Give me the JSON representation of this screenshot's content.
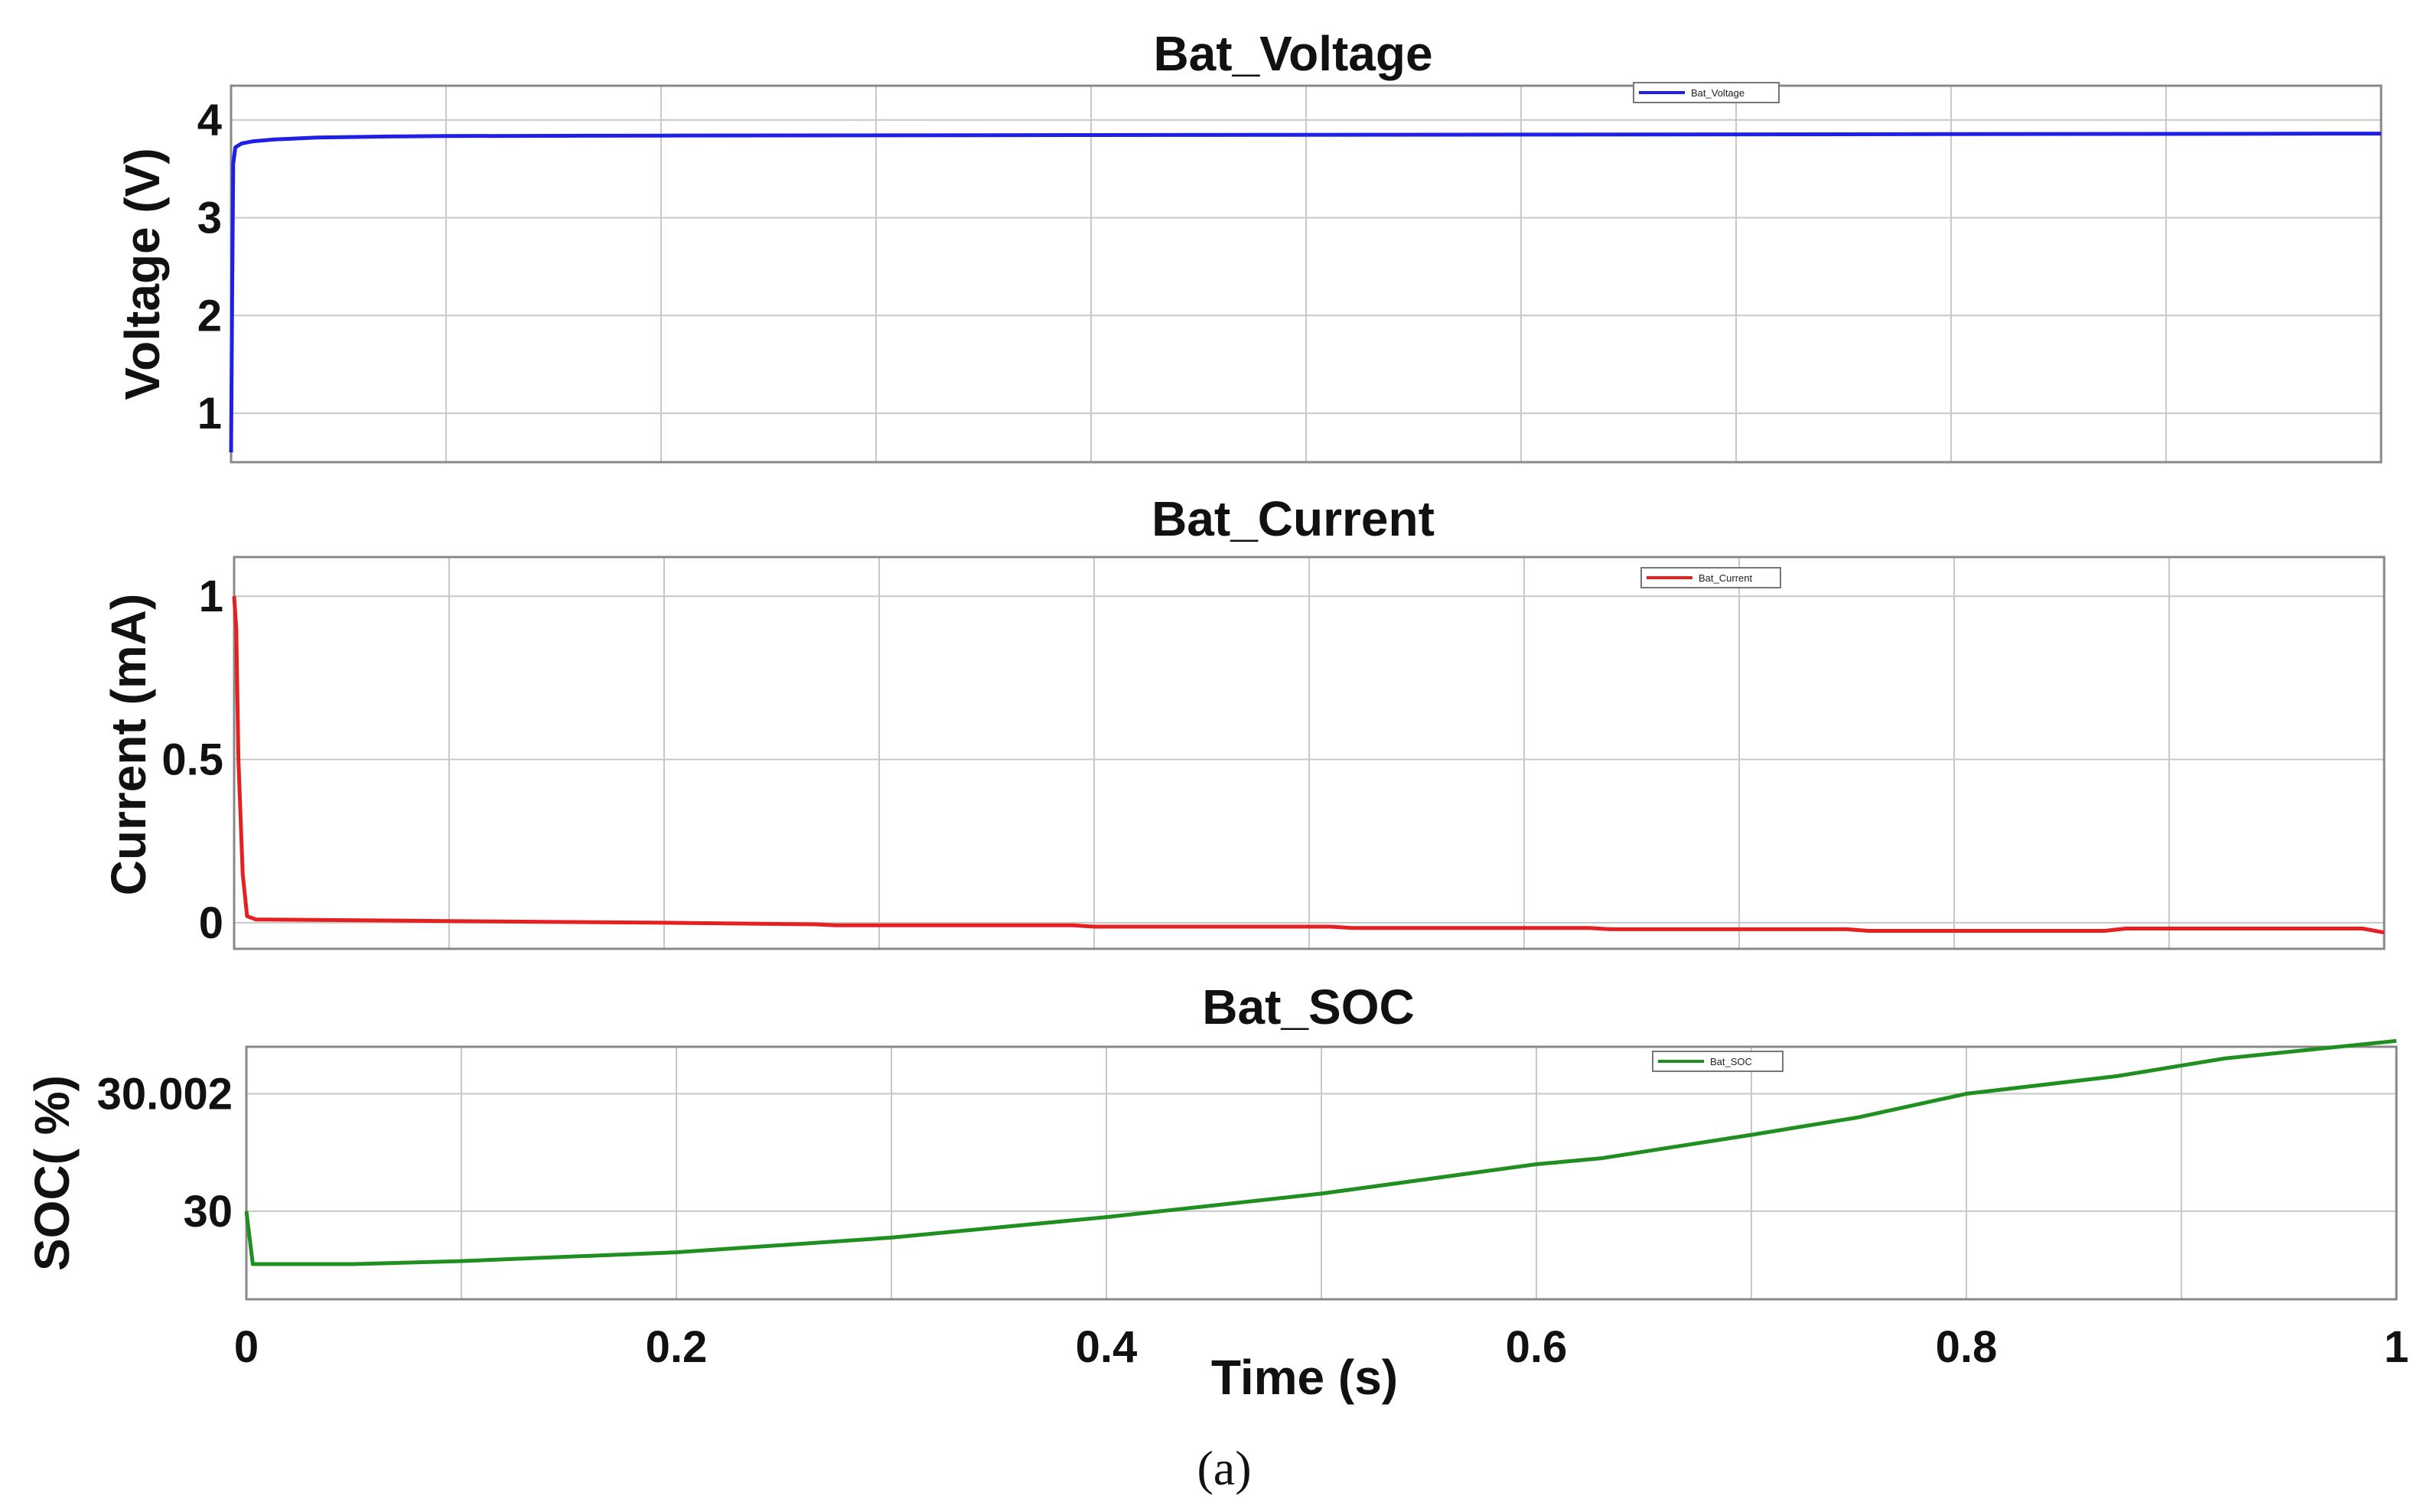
{
  "figure": {
    "caption": "(a)",
    "xlabel": "Time (s)",
    "x_ticks": [
      "0",
      "0.2",
      "0.4",
      "0.6",
      "0.8",
      "1"
    ]
  },
  "colors": {
    "voltage": "#1f1fe6",
    "current": "#e62020",
    "soc": "#1f8f1f",
    "grid": "#c8c8c8",
    "axes": "#888888"
  },
  "chart_data": [
    {
      "type": "line",
      "title": "Bat_Voltage",
      "xlabel": "",
      "ylabel": "Voltage (V)",
      "xlim": [
        0,
        1
      ],
      "ylim": [
        0.5,
        4.35
      ],
      "y_ticks": [
        1,
        2,
        3,
        4
      ],
      "y_tick_labels": [
        "1",
        "2",
        "3",
        "4"
      ],
      "grid": true,
      "legend_position": "top-center",
      "series": [
        {
          "name": "Bat_Voltage",
          "color": "#1f1fe6",
          "x": [
            0,
            0.0005,
            0.001,
            0.002,
            0.005,
            0.01,
            0.02,
            0.04,
            0.07,
            0.1,
            0.2,
            0.4,
            0.6,
            0.8,
            1.0
          ],
          "y": [
            0.6,
            2.2,
            3.55,
            3.72,
            3.76,
            3.78,
            3.8,
            3.82,
            3.83,
            3.835,
            3.84,
            3.845,
            3.85,
            3.855,
            3.86
          ]
        }
      ]
    },
    {
      "type": "line",
      "title": "Bat_Current",
      "xlabel": "",
      "ylabel": "Current (mA)",
      "xlim": [
        0,
        1
      ],
      "ylim": [
        -0.08,
        1.12
      ],
      "y_ticks": [
        0,
        0.5,
        1
      ],
      "y_tick_labels": [
        "0",
        "0.5",
        "1"
      ],
      "grid": true,
      "legend_position": "top-center",
      "series": [
        {
          "name": "Bat_Current",
          "color": "#e62020",
          "x": [
            0,
            0.001,
            0.002,
            0.004,
            0.006,
            0.01,
            0.1,
            0.2,
            0.27,
            0.28,
            0.39,
            0.4,
            0.51,
            0.52,
            0.63,
            0.64,
            0.75,
            0.76,
            0.87,
            0.88,
            0.99,
            1.0
          ],
          "y": [
            1.0,
            0.9,
            0.5,
            0.15,
            0.02,
            0.01,
            0.005,
            0.0,
            -0.005,
            -0.008,
            -0.008,
            -0.012,
            -0.012,
            -0.016,
            -0.016,
            -0.02,
            -0.02,
            -0.025,
            -0.025,
            -0.018,
            -0.018,
            -0.03
          ]
        }
      ]
    },
    {
      "type": "line",
      "title": "Bat_SOC",
      "xlabel": "Time (s)",
      "ylabel": "SOC( %)",
      "xlim": [
        0,
        1
      ],
      "ylim": [
        29.9985,
        30.0028
      ],
      "y_ticks": [
        30,
        30.002
      ],
      "y_tick_labels": [
        "30",
        "30.002"
      ],
      "grid": true,
      "legend_position": "top-center",
      "series": [
        {
          "name": "Bat_SOC",
          "color": "#1f8f1f",
          "x": [
            0,
            0.003,
            0.01,
            0.05,
            0.1,
            0.2,
            0.3,
            0.4,
            0.5,
            0.6,
            0.63,
            0.7,
            0.75,
            0.8,
            0.87,
            0.92,
            1.0
          ],
          "y": [
            30.0,
            29.9991,
            29.9991,
            29.9991,
            29.99915,
            29.9993,
            29.99955,
            29.9999,
            30.0003,
            30.0008,
            30.0009,
            30.0013,
            30.0016,
            30.002,
            30.0023,
            30.0026,
            30.0029
          ]
        }
      ]
    }
  ]
}
